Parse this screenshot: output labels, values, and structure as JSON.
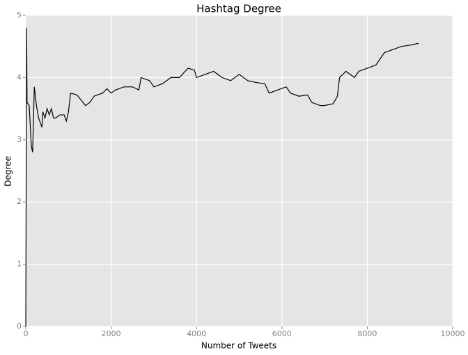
{
  "chart_data": {
    "type": "line",
    "title": "Hashtag Degree",
    "x_label": "Number of Tweets",
    "y_label": "Degree",
    "xlim": [
      0,
      10000
    ],
    "xticks": [
      0,
      2000,
      4000,
      6000,
      8000,
      10000
    ],
    "ylim": [
      0,
      5
    ],
    "yticks": [
      0,
      1,
      2,
      3,
      4,
      5
    ],
    "grid": true,
    "series": [
      {
        "color": "#000000",
        "x": [
          0,
          20,
          30,
          80,
          100,
          130,
          160,
          180,
          200,
          250,
          300,
          380,
          400,
          450,
          500,
          550,
          600,
          650,
          700,
          800,
          900,
          950,
          1000,
          1050,
          1200,
          1400,
          1500,
          1600,
          1800,
          1900,
          2000,
          2100,
          2300,
          2500,
          2650,
          2700,
          2900,
          3000,
          3200,
          3400,
          3600,
          3800,
          3950,
          4000,
          4200,
          4400,
          4600,
          4800,
          5000,
          5200,
          5400,
          5600,
          5700,
          5900,
          6100,
          6200,
          6400,
          6600,
          6700,
          6900,
          7000,
          7200,
          7300,
          7350,
          7500,
          7700,
          7800,
          8000,
          8200,
          8400,
          8600,
          8800,
          9000,
          9200
        ],
        "values": [
          0,
          4.8,
          3.6,
          3.55,
          3.3,
          2.9,
          2.8,
          3.3,
          3.85,
          3.55,
          3.35,
          3.2,
          3.45,
          3.35,
          3.5,
          3.4,
          3.5,
          3.35,
          3.35,
          3.4,
          3.4,
          3.3,
          3.45,
          3.75,
          3.72,
          3.55,
          3.6,
          3.7,
          3.75,
          3.82,
          3.75,
          3.8,
          3.85,
          3.85,
          3.8,
          4.0,
          3.95,
          3.85,
          3.9,
          4.0,
          4.0,
          4.15,
          4.12,
          4.0,
          4.05,
          4.1,
          4.0,
          3.95,
          4.05,
          3.95,
          3.92,
          3.9,
          3.75,
          3.8,
          3.85,
          3.75,
          3.7,
          3.72,
          3.6,
          3.55,
          3.55,
          3.58,
          3.7,
          4.0,
          4.1,
          4.0,
          4.1,
          4.15,
          4.2,
          4.4,
          4.45,
          4.5,
          4.52,
          4.55
        ]
      }
    ]
  }
}
